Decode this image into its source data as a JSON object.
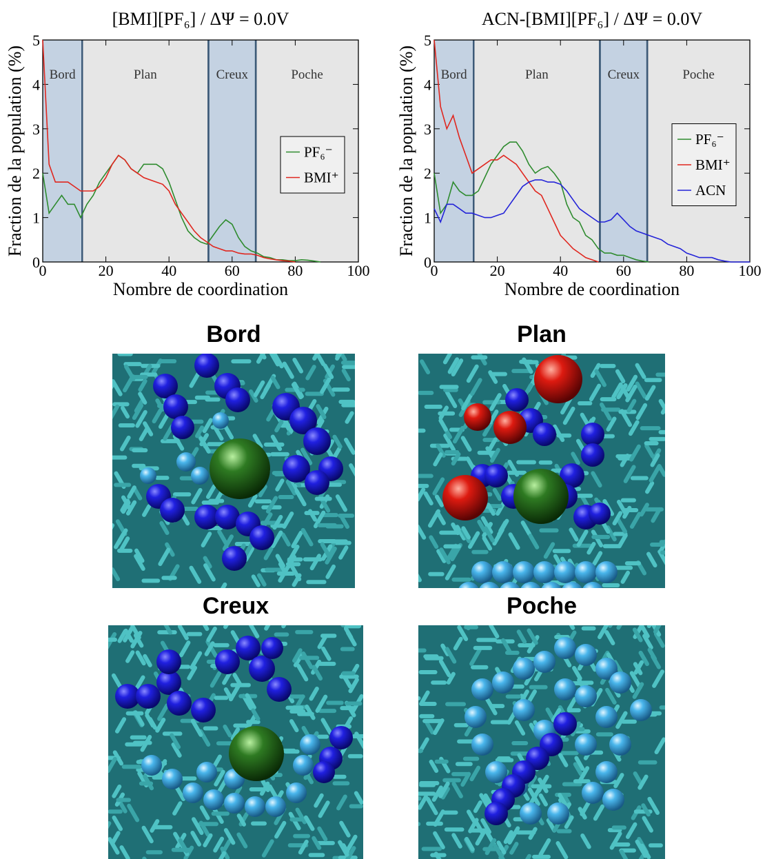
{
  "chart_data": [
    {
      "type": "line",
      "title": "[BMI][PF₆] / ΔΨ = 0.0V",
      "x_label": "Nombre de coordination",
      "y_label": "Fraction de la population (%)",
      "x": [
        0,
        2,
        4,
        6,
        8,
        10,
        12,
        14,
        16,
        18,
        20,
        22,
        24,
        26,
        28,
        30,
        32,
        34,
        36,
        38,
        40,
        42,
        44,
        46,
        48,
        50,
        52,
        54,
        56,
        58,
        60,
        62,
        64,
        66,
        68,
        70,
        72,
        74,
        76,
        78,
        80,
        82,
        84,
        86,
        88,
        90,
        92,
        94,
        96,
        98,
        100
      ],
      "series": [
        {
          "name": "PF₆⁻",
          "color": "#2e8b2e",
          "values": [
            2.0,
            1.1,
            1.3,
            1.5,
            1.3,
            1.3,
            1.0,
            1.3,
            1.5,
            1.8,
            2.0,
            2.2,
            2.4,
            2.3,
            2.1,
            2.0,
            2.2,
            2.2,
            2.2,
            2.1,
            1.8,
            1.4,
            1.0,
            0.7,
            0.55,
            0.45,
            0.4,
            0.6,
            0.8,
            0.95,
            0.85,
            0.55,
            0.35,
            0.25,
            0.2,
            0.12,
            0.1,
            0.05,
            0.05,
            0.03,
            0.03,
            0.05,
            0.04,
            0.02,
            0.0,
            null,
            null,
            null,
            null,
            null,
            null
          ]
        },
        {
          "name": "BMI⁺",
          "color": "#e0261e",
          "values": [
            5.0,
            2.2,
            1.8,
            1.8,
            1.8,
            1.7,
            1.6,
            1.6,
            1.6,
            1.7,
            1.9,
            2.2,
            2.4,
            2.3,
            2.1,
            2.0,
            1.9,
            1.85,
            1.8,
            1.75,
            1.6,
            1.3,
            1.1,
            0.9,
            0.7,
            0.55,
            0.45,
            0.35,
            0.3,
            0.25,
            0.25,
            0.2,
            0.18,
            0.18,
            0.15,
            0.1,
            0.07,
            0.05,
            0.03,
            0.02,
            0.0,
            null,
            null,
            null,
            null,
            null,
            null,
            null,
            null,
            null,
            null
          ]
        }
      ],
      "xlim": [
        0,
        100
      ],
      "ylim": [
        0,
        5
      ],
      "xticks": [
        0,
        20,
        40,
        60,
        80,
        100
      ],
      "yticks": [
        0,
        1,
        2,
        3,
        4,
        5
      ],
      "legend": "right",
      "regions": [
        {
          "label": "Bord",
          "range": [
            0,
            12.5
          ],
          "color": "#c4d2e2"
        },
        {
          "label": "Plan",
          "range": [
            12.5,
            52.5
          ],
          "color": "#e6e6e6"
        },
        {
          "label": "Creux",
          "range": [
            52.5,
            67.5
          ],
          "color": "#c4d2e2"
        },
        {
          "label": "Poche",
          "range": [
            67.5,
            100
          ],
          "color": "#e6e6e6"
        }
      ]
    },
    {
      "type": "line",
      "title": "ACN-[BMI][PF₆] / ΔΨ = 0.0V",
      "x_label": "Nombre de coordination",
      "y_label": "Fraction de la population (%)",
      "x": [
        0,
        2,
        4,
        6,
        8,
        10,
        12,
        14,
        16,
        18,
        20,
        22,
        24,
        26,
        28,
        30,
        32,
        34,
        36,
        38,
        40,
        42,
        44,
        46,
        48,
        50,
        52,
        54,
        56,
        58,
        60,
        62,
        64,
        66,
        68,
        70,
        72,
        74,
        76,
        78,
        80,
        82,
        84,
        86,
        88,
        90,
        92,
        94,
        96,
        98,
        100
      ],
      "series": [
        {
          "name": "PF₆⁻",
          "color": "#2e8b2e",
          "values": [
            2.0,
            1.1,
            1.3,
            1.8,
            1.6,
            1.5,
            1.5,
            1.6,
            1.9,
            2.2,
            2.4,
            2.6,
            2.7,
            2.7,
            2.5,
            2.2,
            2.0,
            2.1,
            2.15,
            2.0,
            1.8,
            1.3,
            1.0,
            0.9,
            0.6,
            0.5,
            0.3,
            0.2,
            0.2,
            0.15,
            0.15,
            0.1,
            0.05,
            0.02,
            0.0,
            null,
            null,
            null,
            null,
            null,
            null,
            null,
            null,
            null,
            null,
            null,
            null,
            null,
            null,
            null,
            null
          ]
        },
        {
          "name": "BMI⁺",
          "color": "#e0261e",
          "values": [
            5.0,
            3.5,
            3.0,
            3.3,
            2.8,
            2.4,
            2.0,
            2.1,
            2.2,
            2.3,
            2.3,
            2.4,
            2.3,
            2.2,
            2.0,
            1.8,
            1.6,
            1.5,
            1.2,
            0.9,
            0.6,
            0.45,
            0.3,
            0.2,
            0.1,
            0.05,
            0.0,
            null,
            null,
            null,
            null,
            null,
            null,
            null,
            null,
            null,
            null,
            null,
            null,
            null,
            null,
            null,
            null,
            null,
            null,
            null,
            null,
            null,
            null,
            null,
            null
          ]
        },
        {
          "name": "ACN",
          "color": "#2323d8",
          "values": [
            1.2,
            0.9,
            1.3,
            1.3,
            1.2,
            1.1,
            1.1,
            1.05,
            1.0,
            1.0,
            1.05,
            1.1,
            1.3,
            1.5,
            1.7,
            1.8,
            1.85,
            1.85,
            1.8,
            1.8,
            1.75,
            1.6,
            1.4,
            1.2,
            1.1,
            1.0,
            0.9,
            0.9,
            0.95,
            1.1,
            0.95,
            0.8,
            0.7,
            0.65,
            0.6,
            0.55,
            0.5,
            0.4,
            0.35,
            0.3,
            0.2,
            0.15,
            0.1,
            0.1,
            0.1,
            0.05,
            0.02,
            0.0,
            0.0,
            0.0,
            0.0
          ]
        }
      ],
      "xlim": [
        0,
        100
      ],
      "ylim": [
        0,
        5
      ],
      "xticks": [
        0,
        20,
        40,
        60,
        80,
        100
      ],
      "yticks": [
        0,
        1,
        2,
        3,
        4,
        5
      ],
      "legend": "right",
      "regions": [
        {
          "label": "Bord",
          "range": [
            0,
            12.5
          ],
          "color": "#c4d2e2"
        },
        {
          "label": "Plan",
          "range": [
            12.5,
            52.5
          ],
          "color": "#e6e6e6"
        },
        {
          "label": "Creux",
          "range": [
            52.5,
            67.5
          ],
          "color": "#c4d2e2"
        },
        {
          "label": "Poche",
          "range": [
            67.5,
            100
          ],
          "color": "#e6e6e6"
        }
      ]
    }
  ],
  "images": [
    {
      "title": "Bord"
    },
    {
      "title": "Plan"
    },
    {
      "title": "Creux"
    },
    {
      "title": "Poche"
    }
  ]
}
